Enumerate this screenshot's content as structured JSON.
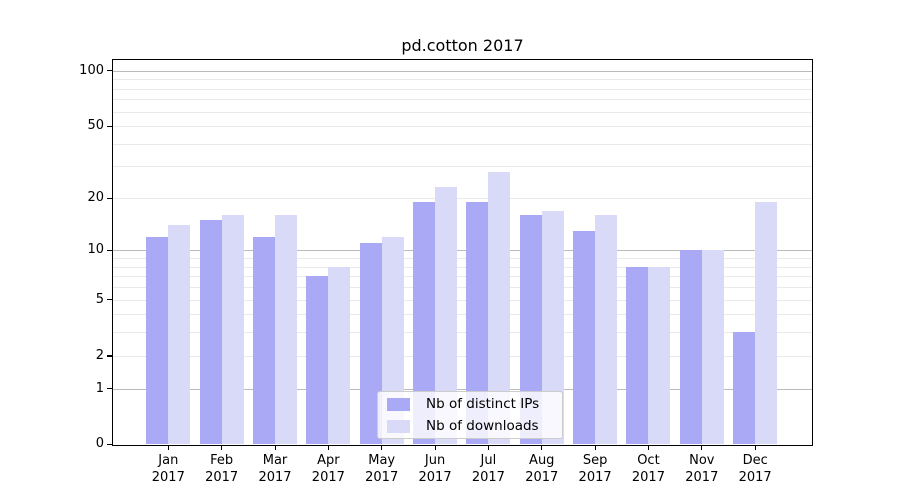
{
  "chart_data": {
    "type": "bar",
    "title": "pd.cotton 2017",
    "categories": [
      "Jan",
      "Feb",
      "Mar",
      "Apr",
      "May",
      "Jun",
      "Jul",
      "Aug",
      "Sep",
      "Oct",
      "Nov",
      "Dec"
    ],
    "category_year": "2017",
    "series": [
      {
        "name": "Nb of distinct IPs",
        "color": "#a9a9f5",
        "values": [
          12,
          15,
          12,
          7,
          11,
          19,
          19,
          16,
          13,
          8,
          10,
          3
        ]
      },
      {
        "name": "Nb of downloads",
        "color": "#d9d9f8",
        "values": [
          14,
          16,
          16,
          8,
          12,
          23,
          28,
          17,
          16,
          8,
          10,
          19
        ]
      }
    ],
    "y_axis": {
      "scale": "log1p",
      "tick_values": [
        0,
        1,
        2,
        5,
        10,
        20,
        50,
        100
      ],
      "tick_labels": [
        "0",
        "1",
        "2",
        "5",
        "10",
        "20",
        "50",
        "100"
      ],
      "major_grid_values": [
        1,
        10,
        100
      ],
      "minor_grid_values": [
        2,
        3,
        4,
        5,
        6,
        7,
        8,
        9,
        20,
        30,
        40,
        50,
        60,
        70,
        80,
        90
      ],
      "ylim": [
        0,
        115
      ]
    },
    "legend": {
      "position": "lower-center",
      "items": [
        "Nb of distinct IPs",
        "Nb of downloads"
      ]
    },
    "grid": true
  },
  "colors": {
    "bar_ips": "#a9a9f5",
    "bar_downloads": "#d9d9f8",
    "grid_major": "#bbbbbb",
    "grid_minor": "#e9e9e9",
    "spine": "#000000",
    "background": "#ffffff"
  }
}
